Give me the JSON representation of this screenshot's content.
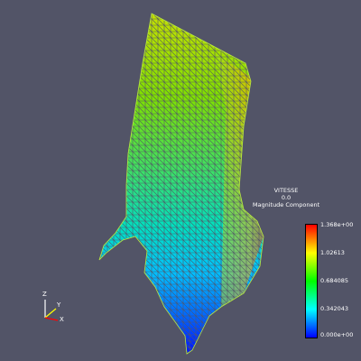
{
  "legend": {
    "array_name": "VITESSE",
    "time": "0.0",
    "component": "Magnitude Component",
    "ticks": [
      "1.368e+00",
      "1.02613",
      "0.684085",
      "0.342043",
      "0.000e+00"
    ],
    "colors": [
      "#ff0000",
      "#ffff00",
      "#00ff00",
      "#00ffff",
      "#0000ff"
    ]
  },
  "axes": {
    "x": "X",
    "y": "Y",
    "z": "Z"
  },
  "colors": {
    "background": "#525467"
  }
}
